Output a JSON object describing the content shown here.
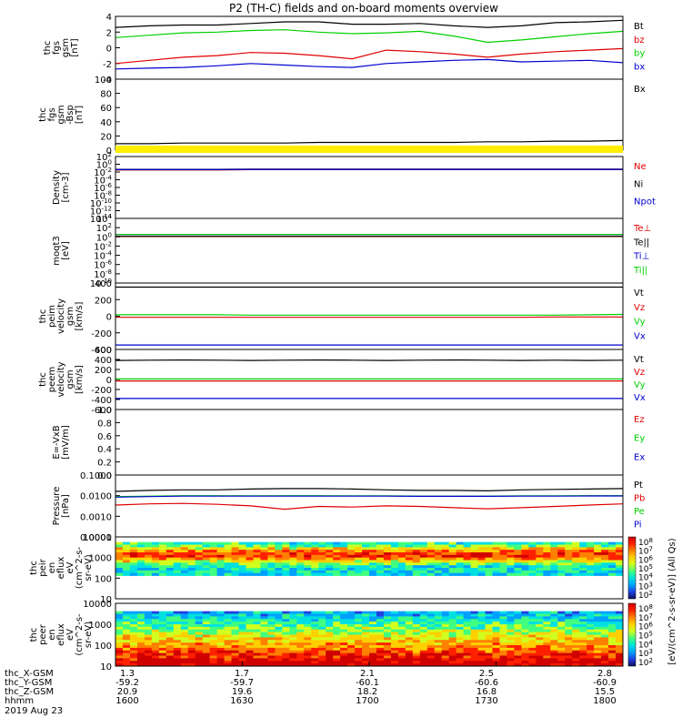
{
  "title": "P2 (TH-C) fields and on-board moments overview",
  "colors": {
    "black": "#000000",
    "red": "#e00000",
    "green": "#00d000",
    "blue": "#0000d0",
    "yellow": "#ffee00"
  },
  "chart_data": [
    {
      "type": "line",
      "id": "fgs",
      "ylabel": [
        "thc",
        "fgs",
        "gsm",
        "[nT]"
      ],
      "ylim": [
        -4,
        4
      ],
      "ticks": [
        "4",
        "2",
        "0",
        "-2",
        "-4"
      ],
      "series": [
        {
          "name": "Bt",
          "color": "black",
          "values": [
            2.6,
            2.8,
            2.9,
            2.9,
            3.1,
            3.3,
            3.3,
            3.0,
            3.0,
            3.1,
            2.8,
            2.6,
            2.8,
            3.2,
            3.3,
            3.5
          ]
        },
        {
          "name": "bz",
          "color": "red",
          "values": [
            -2.0,
            -1.6,
            -1.2,
            -1.0,
            -0.6,
            -0.7,
            -1.0,
            -1.4,
            -0.3,
            -0.5,
            -0.8,
            -1.2,
            -0.8,
            -0.5,
            -0.3,
            -0.1
          ]
        },
        {
          "name": "by",
          "color": "green",
          "values": [
            1.3,
            1.6,
            1.9,
            2.0,
            2.2,
            2.3,
            2.0,
            1.8,
            1.9,
            2.1,
            1.5,
            0.7,
            1.0,
            1.4,
            1.8,
            2.1
          ]
        },
        {
          "name": "bx",
          "color": "blue",
          "values": [
            -2.7,
            -2.6,
            -2.5,
            -2.3,
            -2.0,
            -2.2,
            -2.4,
            -2.5,
            -2.0,
            -1.8,
            -1.6,
            -1.5,
            -1.8,
            -1.7,
            -1.6,
            -1.9
          ]
        }
      ]
    },
    {
      "type": "line",
      "id": "fgs2",
      "ylabel": [
        "thc",
        "fgs",
        "gsm",
        "-Bsp",
        "[nT]"
      ],
      "ylim": [
        -10,
        100
      ],
      "ticks": [
        "100",
        "80",
        "60",
        "40",
        "20",
        "0"
      ],
      "series": [
        {
          "name": "Bx",
          "color": "black",
          "values": [
            0,
            0,
            1,
            1,
            1,
            1,
            2,
            2,
            2,
            2,
            2,
            3,
            3,
            4,
            4,
            5
          ]
        }
      ]
    },
    {
      "type": "line",
      "id": "density",
      "ylabel": [
        "Density",
        "[cm-3]"
      ],
      "log": true,
      "ylim": [
        -14,
        3
      ],
      "ticks": [
        "10^2",
        "10^0",
        "10^-2",
        "10^-4",
        "10^-6",
        "10^-8",
        "10^-10",
        "10^-12",
        "10^-14"
      ],
      "series": [
        {
          "name": "Ne",
          "color": "red",
          "values": [
            0.2,
            0.2,
            0.2,
            0.2,
            0.25,
            0.25,
            0.25,
            0.25,
            0.25,
            0.25,
            0.25,
            0.25,
            0.25,
            0.25,
            0.25,
            0.25
          ]
        },
        {
          "name": "Ni",
          "color": "black",
          "values": [
            0.3,
            0.3,
            0.3,
            0.3,
            0.35,
            0.35,
            0.35,
            0.35,
            0.35,
            0.35,
            0.35,
            0.35,
            0.35,
            0.35,
            0.35,
            0.35
          ]
        },
        {
          "name": "Npot",
          "color": "blue",
          "values": [
            0.25,
            0.25,
            0.25,
            0.25,
            0.3,
            0.3,
            0.3,
            0.3,
            0.3,
            0.3,
            0.3,
            0.3,
            0.3,
            0.3,
            0.3,
            0.3
          ]
        }
      ]
    },
    {
      "type": "line",
      "id": "temp",
      "ylabel": [
        "moqt3",
        "[eV]"
      ],
      "log": true,
      "ylim": [
        -10,
        4
      ],
      "ticks": [
        "10^4",
        "10^2",
        "10^0",
        "10^-2",
        "10^-4",
        "10^-6",
        "10^-8",
        "10^-10"
      ],
      "series": [
        {
          "name": "Te⊥",
          "color": "red",
          "values": [
            1.2,
            1.2,
            1.2,
            1.2,
            1.2,
            1.2,
            1.2,
            1.2,
            1.2,
            1.2,
            1.2,
            1.2,
            1.2,
            1.2,
            1.2,
            1.2
          ]
        },
        {
          "name": "Te||",
          "color": "black",
          "values": [
            1.3,
            1.3,
            1.3,
            1.3,
            1.3,
            1.3,
            1.3,
            1.3,
            1.3,
            1.3,
            1.3,
            1.3,
            1.3,
            1.3,
            1.3,
            1.3
          ]
        },
        {
          "name": "Ti⊥",
          "color": "blue",
          "values": [
            3.2,
            3.2,
            3.2,
            3.2,
            3.2,
            3.2,
            3.2,
            3.2,
            3.2,
            3.2,
            3.2,
            3.2,
            3.2,
            3.2,
            3.2,
            3.2
          ]
        },
        {
          "name": "Ti||",
          "color": "green",
          "values": [
            3.3,
            3.3,
            3.3,
            3.3,
            3.3,
            3.3,
            3.3,
            3.3,
            3.3,
            3.3,
            3.3,
            3.3,
            3.3,
            3.3,
            3.3,
            3.3
          ]
        }
      ]
    },
    {
      "type": "line",
      "id": "peim",
      "ylabel": [
        "thc",
        "peim",
        "velocity",
        "gsm",
        "[km/s]"
      ],
      "ylim": [
        -450,
        450
      ],
      "ticks": [
        "400",
        "200",
        "0",
        "-200",
        "-400"
      ],
      "series": [
        {
          "name": "Vt",
          "color": "black",
          "values": [
            395,
            395,
            395,
            395,
            395,
            395,
            395,
            395,
            395,
            395,
            395,
            395,
            395,
            395,
            395,
            395
          ]
        },
        {
          "name": "Vz",
          "color": "red",
          "values": [
            -15,
            -15,
            -15,
            -15,
            -15,
            -15,
            -15,
            -15,
            -15,
            -15,
            -15,
            -15,
            -15,
            -10,
            -10,
            -10
          ]
        },
        {
          "name": "Vy",
          "color": "green",
          "values": [
            20,
            20,
            20,
            20,
            15,
            15,
            15,
            15,
            15,
            15,
            15,
            15,
            15,
            15,
            20,
            25
          ]
        },
        {
          "name": "Vx",
          "color": "blue",
          "values": [
            -390,
            -390,
            -390,
            -390,
            -390,
            -390,
            -390,
            -390,
            -390,
            -390,
            -390,
            -390,
            -390,
            -390,
            -390,
            -390
          ]
        }
      ]
    },
    {
      "type": "line",
      "id": "peem",
      "ylabel": [
        "thc",
        "peem",
        "velocity",
        "gsm",
        "[km/s]"
      ],
      "ylim": [
        -600,
        600
      ],
      "ticks": [
        "600",
        "400",
        "200",
        "0",
        "-200",
        "-400",
        "-600"
      ],
      "series": [
        {
          "name": "Vt",
          "color": "black",
          "values": [
            380,
            385,
            390,
            385,
            380,
            385,
            390,
            385,
            380,
            385,
            390,
            385,
            380,
            385,
            380,
            385
          ]
        },
        {
          "name": "Vz",
          "color": "red",
          "values": [
            -30,
            -30,
            -30,
            -30,
            -30,
            -30,
            -30,
            -30,
            -30,
            -30,
            -30,
            -30,
            -30,
            -30,
            -30,
            -30
          ]
        },
        {
          "name": "Vy",
          "color": "green",
          "values": [
            10,
            10,
            10,
            10,
            10,
            10,
            10,
            10,
            10,
            10,
            10,
            10,
            10,
            10,
            10,
            10
          ]
        },
        {
          "name": "Vx",
          "color": "blue",
          "values": [
            -380,
            -380,
            -380,
            -380,
            -380,
            -380,
            -380,
            -380,
            -380,
            -380,
            -380,
            -380,
            -380,
            -380,
            -380,
            -380
          ]
        }
      ]
    },
    {
      "type": "line",
      "id": "efield",
      "ylabel": [
        "E=-VxB",
        "[mV/m]"
      ],
      "ylim": [
        0,
        1
      ],
      "ticks": [
        "1.0",
        "0.8",
        "0.6",
        "0.4",
        "0.2",
        "0.0"
      ],
      "series": [
        {
          "name": "Ez",
          "color": "red",
          "values": []
        },
        {
          "name": "Ey",
          "color": "green",
          "values": []
        },
        {
          "name": "Ex",
          "color": "blue",
          "values": []
        }
      ]
    },
    {
      "type": "line",
      "id": "pressure",
      "ylabel": [
        "Pressure",
        "[nPa]"
      ],
      "log": true,
      "ylim": [
        -4,
        -1
      ],
      "ticks": [
        "0.1000",
        "0.0100",
        "0.0010",
        "0.0001"
      ],
      "series": [
        {
          "name": "Pt",
          "color": "black",
          "values": [
            0.016,
            0.018,
            0.019,
            0.019,
            0.021,
            0.022,
            0.022,
            0.021,
            0.019,
            0.018,
            0.018,
            0.017,
            0.019,
            0.02,
            0.021,
            0.022
          ]
        },
        {
          "name": "Pb",
          "color": "red",
          "values": [
            0.0035,
            0.004,
            0.0042,
            0.0038,
            0.0032,
            0.0022,
            0.003,
            0.0028,
            0.0032,
            0.003,
            0.0026,
            0.0023,
            0.0026,
            0.003,
            0.0035,
            0.004
          ]
        },
        {
          "name": "Pe",
          "color": "green",
          "values": [
            0.009,
            0.0095,
            0.01,
            0.01,
            0.0098,
            0.01,
            0.01,
            0.0098,
            0.0098,
            0.0095,
            0.0095,
            0.0095,
            0.0098,
            0.0098,
            0.01,
            0.01
          ]
        },
        {
          "name": "Pi",
          "color": "blue",
          "values": [
            0.0085,
            0.009,
            0.0095,
            0.0095,
            0.0095,
            0.0095,
            0.0095,
            0.0095,
            0.0095,
            0.0093,
            0.0093,
            0.0093,
            0.0095,
            0.0095,
            0.0097,
            0.0097
          ]
        }
      ]
    },
    {
      "type": "heatmap",
      "id": "peir",
      "ylabel": [
        "thc",
        "peir",
        "en",
        "eflux",
        "eV",
        "(cm^2-s-",
        "sr-eV)"
      ],
      "ticks": [
        "10000",
        "1000",
        "100",
        "10"
      ]
    },
    {
      "type": "heatmap",
      "id": "peer",
      "ylabel": [
        "thc",
        "peer",
        "en",
        "eflux",
        "eV",
        "(cm^2-s-",
        "sr-eV)"
      ],
      "ticks": [
        "10000",
        "1000",
        "100",
        "10"
      ]
    }
  ],
  "colorbar": {
    "label": "[eV/(cm^2-s-sr-eV)] (All Qs)",
    "upper_ticks": [
      "10^8",
      "10^7",
      "10^6",
      "10^5",
      "10^4",
      "10^3",
      "10^2"
    ],
    "lower_ticks": [
      "10^8",
      "10^7",
      "10^6",
      "10^5",
      "10^4",
      "10^3",
      "10^2"
    ]
  },
  "xaxis": {
    "row_labels": [
      "thc_X-GSM",
      "thc_Y-GSM",
      "thc_Z-GSM",
      "hhmm"
    ],
    "date": "2019 Aug 23",
    "columns": [
      {
        "x": "1.3",
        "y": "-59.2",
        "z": "20.9",
        "t": "1600"
      },
      {
        "x": "1.7",
        "y": "-59.7",
        "z": "19.6",
        "t": "1630"
      },
      {
        "x": "2.1",
        "y": "-60.1",
        "z": "18.2",
        "t": "1700"
      },
      {
        "x": "2.5",
        "y": "-60.6",
        "z": "16.8",
        "t": "1730"
      },
      {
        "x": "2.8",
        "y": "-60.9",
        "z": "15.5",
        "t": "1800"
      }
    ]
  }
}
